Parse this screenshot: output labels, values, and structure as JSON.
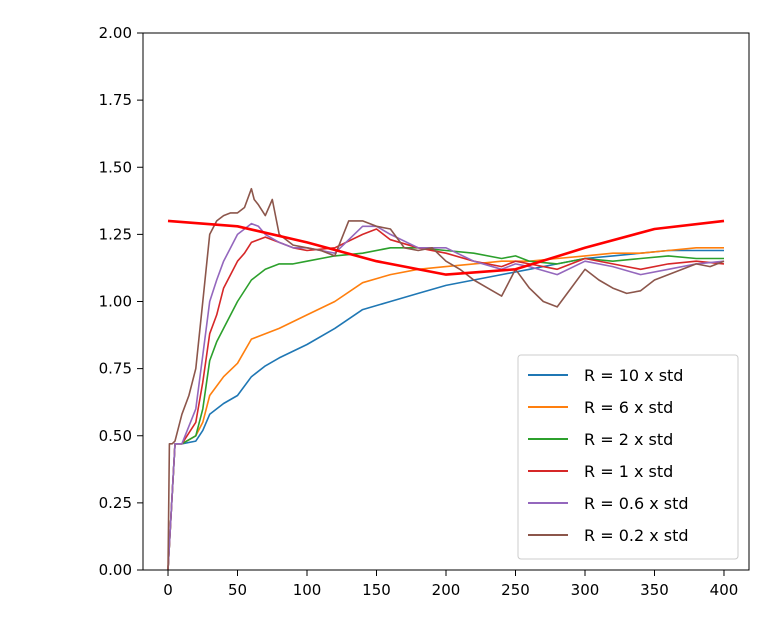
{
  "chart_data": {
    "type": "line",
    "title": "",
    "xlabel": "",
    "ylabel": "",
    "xlim": [
      -18,
      418
    ],
    "ylim": [
      0,
      2.0
    ],
    "x_ticks": [
      0,
      50,
      100,
      150,
      200,
      250,
      300,
      350,
      400
    ],
    "x_tick_labels": [
      "0",
      "50",
      "100",
      "150",
      "200",
      "250",
      "300",
      "350",
      "400"
    ],
    "y_ticks": [
      0,
      0.25,
      0.5,
      0.75,
      1.0,
      1.25,
      1.5,
      1.75,
      2.0
    ],
    "y_tick_labels": [
      "0.00",
      "0.25",
      "0.50",
      "0.75",
      "1.00",
      "1.25",
      "1.50",
      "1.75",
      "2.00"
    ],
    "grid": false,
    "legend_position": "lower-right",
    "reference_curve": {
      "color": "#ff0000",
      "x": [
        0,
        50,
        100,
        150,
        200,
        250,
        300,
        350,
        400
      ],
      "y": [
        1.3,
        1.28,
        1.22,
        1.15,
        1.1,
        1.12,
        1.2,
        1.27,
        1.3
      ]
    },
    "series": [
      {
        "name": "R = 10 x std",
        "color": "#1f77b4",
        "x": [
          0,
          5,
          10,
          20,
          25,
          30,
          40,
          50,
          60,
          70,
          80,
          100,
          120,
          140,
          160,
          180,
          200,
          220,
          240,
          260,
          280,
          300,
          320,
          340,
          360,
          380,
          400
        ],
        "y": [
          0.0,
          0.47,
          0.47,
          0.48,
          0.52,
          0.58,
          0.62,
          0.65,
          0.72,
          0.76,
          0.79,
          0.84,
          0.9,
          0.97,
          1.0,
          1.03,
          1.06,
          1.08,
          1.1,
          1.12,
          1.14,
          1.16,
          1.17,
          1.18,
          1.19,
          1.19,
          1.19
        ]
      },
      {
        "name": "R = 6 x std",
        "color": "#ff7f0e",
        "x": [
          0,
          5,
          10,
          20,
          25,
          30,
          40,
          50,
          60,
          80,
          100,
          120,
          140,
          160,
          180,
          200,
          220,
          240,
          260,
          280,
          300,
          320,
          340,
          360,
          380,
          400
        ],
        "y": [
          0.0,
          0.47,
          0.47,
          0.5,
          0.55,
          0.65,
          0.72,
          0.77,
          0.86,
          0.9,
          0.95,
          1.0,
          1.07,
          1.1,
          1.12,
          1.13,
          1.14,
          1.15,
          1.15,
          1.16,
          1.17,
          1.18,
          1.18,
          1.19,
          1.2,
          1.2
        ]
      },
      {
        "name": "R = 2 x std",
        "color": "#2ca02c",
        "x": [
          0,
          5,
          10,
          20,
          25,
          30,
          35,
          40,
          50,
          60,
          70,
          80,
          90,
          100,
          120,
          140,
          160,
          180,
          200,
          220,
          240,
          250,
          260,
          280,
          300,
          320,
          340,
          360,
          380,
          400
        ],
        "y": [
          0.0,
          0.47,
          0.47,
          0.5,
          0.6,
          0.78,
          0.85,
          0.9,
          1.0,
          1.08,
          1.12,
          1.14,
          1.14,
          1.15,
          1.17,
          1.18,
          1.2,
          1.2,
          1.19,
          1.18,
          1.16,
          1.17,
          1.15,
          1.14,
          1.16,
          1.15,
          1.16,
          1.17,
          1.16,
          1.16
        ]
      },
      {
        "name": "R = 1 x std",
        "color": "#d62728",
        "x": [
          0,
          5,
          10,
          20,
          25,
          30,
          35,
          40,
          50,
          55,
          60,
          70,
          80,
          90,
          100,
          120,
          140,
          150,
          160,
          180,
          200,
          220,
          240,
          250,
          260,
          280,
          300,
          320,
          340,
          360,
          380,
          400
        ],
        "y": [
          0.0,
          0.47,
          0.47,
          0.55,
          0.7,
          0.88,
          0.95,
          1.05,
          1.15,
          1.18,
          1.22,
          1.24,
          1.22,
          1.2,
          1.19,
          1.2,
          1.25,
          1.27,
          1.23,
          1.2,
          1.18,
          1.15,
          1.13,
          1.15,
          1.14,
          1.12,
          1.16,
          1.14,
          1.12,
          1.14,
          1.15,
          1.14
        ]
      },
      {
        "name": "R = 0.6 x std",
        "color": "#9467bd",
        "x": [
          0,
          5,
          10,
          20,
          25,
          30,
          35,
          40,
          45,
          50,
          55,
          60,
          65,
          70,
          80,
          90,
          100,
          120,
          140,
          150,
          160,
          180,
          200,
          220,
          240,
          250,
          260,
          280,
          300,
          320,
          340,
          360,
          380,
          400
        ],
        "y": [
          0.0,
          0.47,
          0.47,
          0.6,
          0.8,
          1.0,
          1.08,
          1.15,
          1.2,
          1.25,
          1.27,
          1.29,
          1.28,
          1.25,
          1.22,
          1.2,
          1.2,
          1.18,
          1.28,
          1.28,
          1.25,
          1.2,
          1.2,
          1.15,
          1.12,
          1.14,
          1.13,
          1.1,
          1.15,
          1.13,
          1.1,
          1.12,
          1.14,
          1.15
        ]
      },
      {
        "name": "R = 0.2 x std",
        "color": "#8c564b",
        "x": [
          0,
          1,
          3,
          5,
          10,
          15,
          20,
          25,
          30,
          35,
          40,
          45,
          50,
          55,
          60,
          62,
          65,
          70,
          75,
          80,
          90,
          100,
          110,
          120,
          130,
          140,
          150,
          160,
          170,
          180,
          190,
          200,
          210,
          220,
          230,
          240,
          250,
          260,
          270,
          280,
          290,
          300,
          310,
          320,
          330,
          340,
          350,
          360,
          370,
          380,
          390,
          400
        ],
        "y": [
          0.0,
          0.47,
          0.47,
          0.48,
          0.58,
          0.65,
          0.75,
          1.0,
          1.25,
          1.3,
          1.32,
          1.33,
          1.33,
          1.35,
          1.42,
          1.38,
          1.36,
          1.32,
          1.38,
          1.25,
          1.21,
          1.2,
          1.19,
          1.17,
          1.3,
          1.3,
          1.28,
          1.27,
          1.2,
          1.19,
          1.2,
          1.15,
          1.12,
          1.08,
          1.05,
          1.02,
          1.12,
          1.05,
          1.0,
          0.98,
          1.05,
          1.12,
          1.08,
          1.05,
          1.03,
          1.04,
          1.08,
          1.1,
          1.12,
          1.14,
          1.13,
          1.15
        ]
      }
    ]
  }
}
